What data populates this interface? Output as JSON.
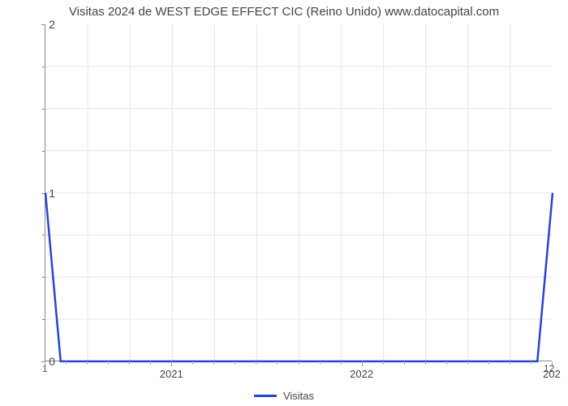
{
  "chart": {
    "type": "line",
    "title": "Visitas 2024 de WEST EDGE EFFECT CIC (Reino Unido) www.datocapital.com",
    "title_fontsize": 15,
    "title_color": "#444444",
    "background_color": "#ffffff",
    "series": {
      "name": "Visitas",
      "color": "#2944d4",
      "line_width": 2.5,
      "x": [
        0,
        0.03,
        0.97,
        1.0
      ],
      "y": [
        1,
        0,
        0,
        1
      ]
    },
    "y_axis": {
      "min": 0,
      "max": 2,
      "ticks": [
        0,
        1,
        2
      ],
      "minor_step": 0.25,
      "label_fontsize": 14,
      "label_color": "#444444"
    },
    "x_axis": {
      "left_label": "1",
      "right_label": "12",
      "major_labels": [
        "2021",
        "2022",
        "202"
      ],
      "major_positions": [
        0.25,
        0.625,
        1.0
      ],
      "minor_count": 24,
      "label_fontsize": 13,
      "label_color": "#444444"
    },
    "grid": {
      "v_count": 11,
      "h_count": 8,
      "color": "#e6e6e6"
    },
    "axis_color": "#888888",
    "legend": {
      "label": "Visitas",
      "swatch_color": "#2944d4",
      "fontsize": 13
    }
  }
}
